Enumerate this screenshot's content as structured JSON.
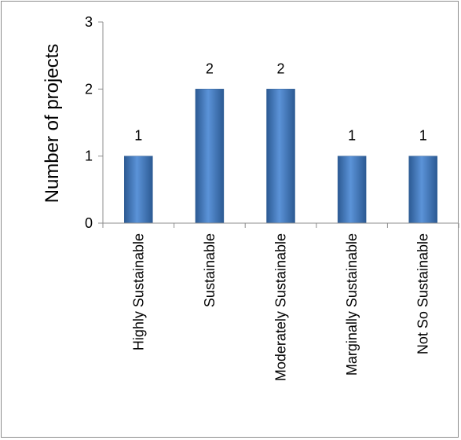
{
  "chart_data": {
    "type": "bar",
    "categories": [
      "Highly Sustainable",
      "Sustainable",
      "Moderately Sustainable",
      "Marginally Sustainable",
      "Not So Sustainable"
    ],
    "values": [
      1,
      2,
      2,
      1,
      1
    ],
    "data_labels": [
      "1",
      "2",
      "2",
      "1",
      "1"
    ],
    "title": "",
    "xlabel": "",
    "ylabel": "Number of projects",
    "ylim": [
      0,
      3
    ],
    "yticks": [
      "0",
      "1",
      "2",
      "3"
    ],
    "grid": false,
    "legend": "none",
    "bar_color": "#4a7ebb",
    "bar_color_light": "#5b93d8",
    "bar_color_dark": "#2c5a93"
  }
}
